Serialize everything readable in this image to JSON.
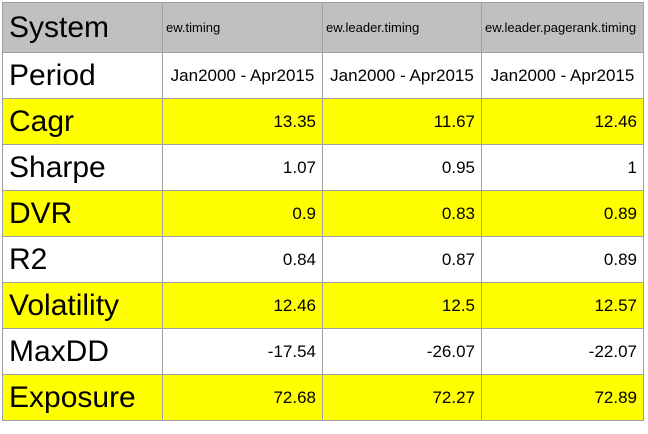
{
  "header": {
    "label": "System",
    "systems": [
      "ew.timing",
      "ew.leader.timing",
      "ew.leader.pagerank.timing"
    ]
  },
  "rows": [
    {
      "label": "Period",
      "values": [
        "Jan2000 - Apr2015",
        "Jan2000 - Apr2015",
        "Jan2000 - Apr2015"
      ],
      "highlight": false
    },
    {
      "label": "Cagr",
      "values": [
        "13.35",
        "11.67",
        "12.46"
      ],
      "highlight": true
    },
    {
      "label": "Sharpe",
      "values": [
        "1.07",
        "0.95",
        "1"
      ],
      "highlight": false
    },
    {
      "label": "DVR",
      "values": [
        "0.9",
        "0.83",
        "0.89"
      ],
      "highlight": true
    },
    {
      "label": "R2",
      "values": [
        "0.84",
        "0.87",
        "0.89"
      ],
      "highlight": false
    },
    {
      "label": "Volatility",
      "values": [
        "12.46",
        "12.5",
        "12.57"
      ],
      "highlight": true
    },
    {
      "label": "MaxDD",
      "values": [
        "-17.54",
        "-26.07",
        "-22.07"
      ],
      "highlight": false
    },
    {
      "label": "Exposure",
      "values": [
        "72.68",
        "72.27",
        "72.89"
      ],
      "highlight": true
    }
  ],
  "colors": {
    "header_background": "#c0c0c0",
    "highlight_background": "#ffff00",
    "plain_background": "#ffffff",
    "grid_line": "#a0a0a0"
  }
}
